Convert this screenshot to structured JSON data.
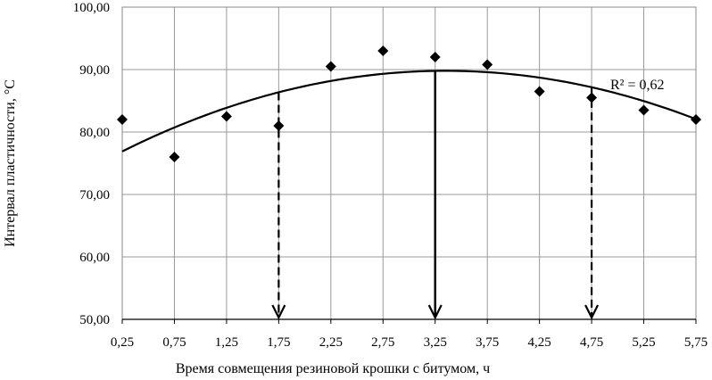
{
  "chart_data": {
    "type": "scatter",
    "xlabel": "Время совмещения резиновой крошки с битумом, ч",
    "ylabel": "Интервал пластичности, °С",
    "x_ticks": [
      "0,25",
      "0,75",
      "1,25",
      "1,75",
      "2,25",
      "2,75",
      "3,25",
      "3,75",
      "4,25",
      "4,75",
      "5,25",
      "5,75"
    ],
    "y_ticks": [
      "50,00",
      "60,00",
      "70,00",
      "80,00",
      "90,00",
      "100,00"
    ],
    "xlim": [
      0.25,
      5.75
    ],
    "ylim": [
      50,
      100
    ],
    "grid": true,
    "points": [
      {
        "x": 0.25,
        "y": 82.0
      },
      {
        "x": 0.75,
        "y": 76.0
      },
      {
        "x": 1.25,
        "y": 82.5
      },
      {
        "x": 1.75,
        "y": 81.0
      },
      {
        "x": 2.25,
        "y": 90.5
      },
      {
        "x": 2.75,
        "y": 93.0
      },
      {
        "x": 3.25,
        "y": 92.0
      },
      {
        "x": 3.75,
        "y": 90.8
      },
      {
        "x": 4.25,
        "y": 86.5
      },
      {
        "x": 4.75,
        "y": 85.5
      },
      {
        "x": 5.25,
        "y": 83.5
      },
      {
        "x": 5.75,
        "y": 82.0
      }
    ],
    "trendline": {
      "type": "polynomial-2",
      "x_range": [
        0.25,
        5.75
      ],
      "vertex": {
        "x": 3.35,
        "y": 89.8
      },
      "a": -1.343,
      "r2_label": "R² = 0,62"
    },
    "arrows": [
      {
        "x": 1.75,
        "style": "dashed"
      },
      {
        "x": 3.25,
        "style": "solid"
      },
      {
        "x": 4.75,
        "style": "dashed"
      }
    ]
  }
}
